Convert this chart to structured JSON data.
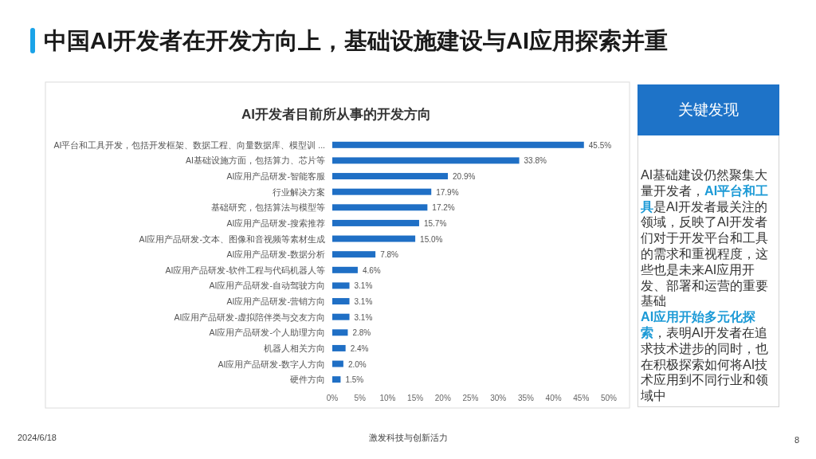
{
  "chart_data": [
    {
      "type": "bar",
      "orientation": "horizontal",
      "title": "中国AI开发者在开发方向上，基础设施建设与AI应用探索并重",
      "subtitle": "AI开发者目前所从事的开发方向",
      "categories": [
        "AI平台和工具开发，包括开发框架、数据工程、向量数据库、模型训 ...",
        "AI基础设施方面，包括算力、芯片等",
        "AI应用产品研发-智能客服",
        "行业解决方案",
        "基础研究，包括算法与模型等",
        "AI应用产品研发-搜索推荐",
        "AI应用产品研发-文本、图像和音视频等素材生成",
        "AI应用产品研发-数据分析",
        "AI应用产品研发-软件工程与代码机器人等",
        "AI应用产品研发-自动驾驶方向",
        "AI应用产品研发-营销方向",
        "AI应用产品研发-虚拟陪伴类与交友方向",
        "AI应用产品研发-个人助理方向",
        "机器人相关方向",
        "AI应用产品研发-数字人方向",
        "硬件方向"
      ],
      "values": [
        45.5,
        33.8,
        20.9,
        17.9,
        17.2,
        15.7,
        15.0,
        7.8,
        4.6,
        3.1,
        3.1,
        3.1,
        2.8,
        2.4,
        2.0,
        1.5
      ],
      "value_labels": [
        "45.5%",
        "33.8%",
        "20.9%",
        "17.9%",
        "17.2%",
        "15.7%",
        "15.0%",
        "7.8%",
        "4.6%",
        "3.1%",
        "3.1%",
        "3.1%",
        "2.8%",
        "2.4%",
        "2.0%",
        "1.5%"
      ],
      "color": "#1f6fc5",
      "xlim": [
        0,
        50
      ],
      "xticks": [
        {
          "value": 0,
          "label": "0%"
        },
        {
          "value": 5,
          "label": "5%"
        },
        {
          "value": 10,
          "label": "10%"
        },
        {
          "value": 15,
          "label": "15%"
        },
        {
          "value": 20,
          "label": "20%"
        },
        {
          "value": 25,
          "label": "25%"
        },
        {
          "value": 30,
          "label": "30%"
        },
        {
          "value": 35,
          "label": "35%"
        },
        {
          "value": 40,
          "label": "40%"
        },
        {
          "value": 45,
          "label": "45%"
        },
        {
          "value": 50,
          "label": "50%"
        }
      ],
      "annotations": [
        "2024/6/18",
        "激发科技与创新活力",
        "8"
      ]
    },
    {
      "type": "other",
      "title": "关键发现",
      "annotations": [
        "AI基础建设仍然聚集大量开发者，**AI平台和工具**是AI开发者最关注的领域，反映了AI开发者们对于开发平台和工具的需求和重视程度，这些也是未来AI应用开发、部署和运营的重要基础",
        "**AI应用开始多元化探索**，表明AI开发者在追求技术进步的同时，也在积极探索如何将AI技术应用到不同行业和领域中"
      ]
    }
  ]
}
